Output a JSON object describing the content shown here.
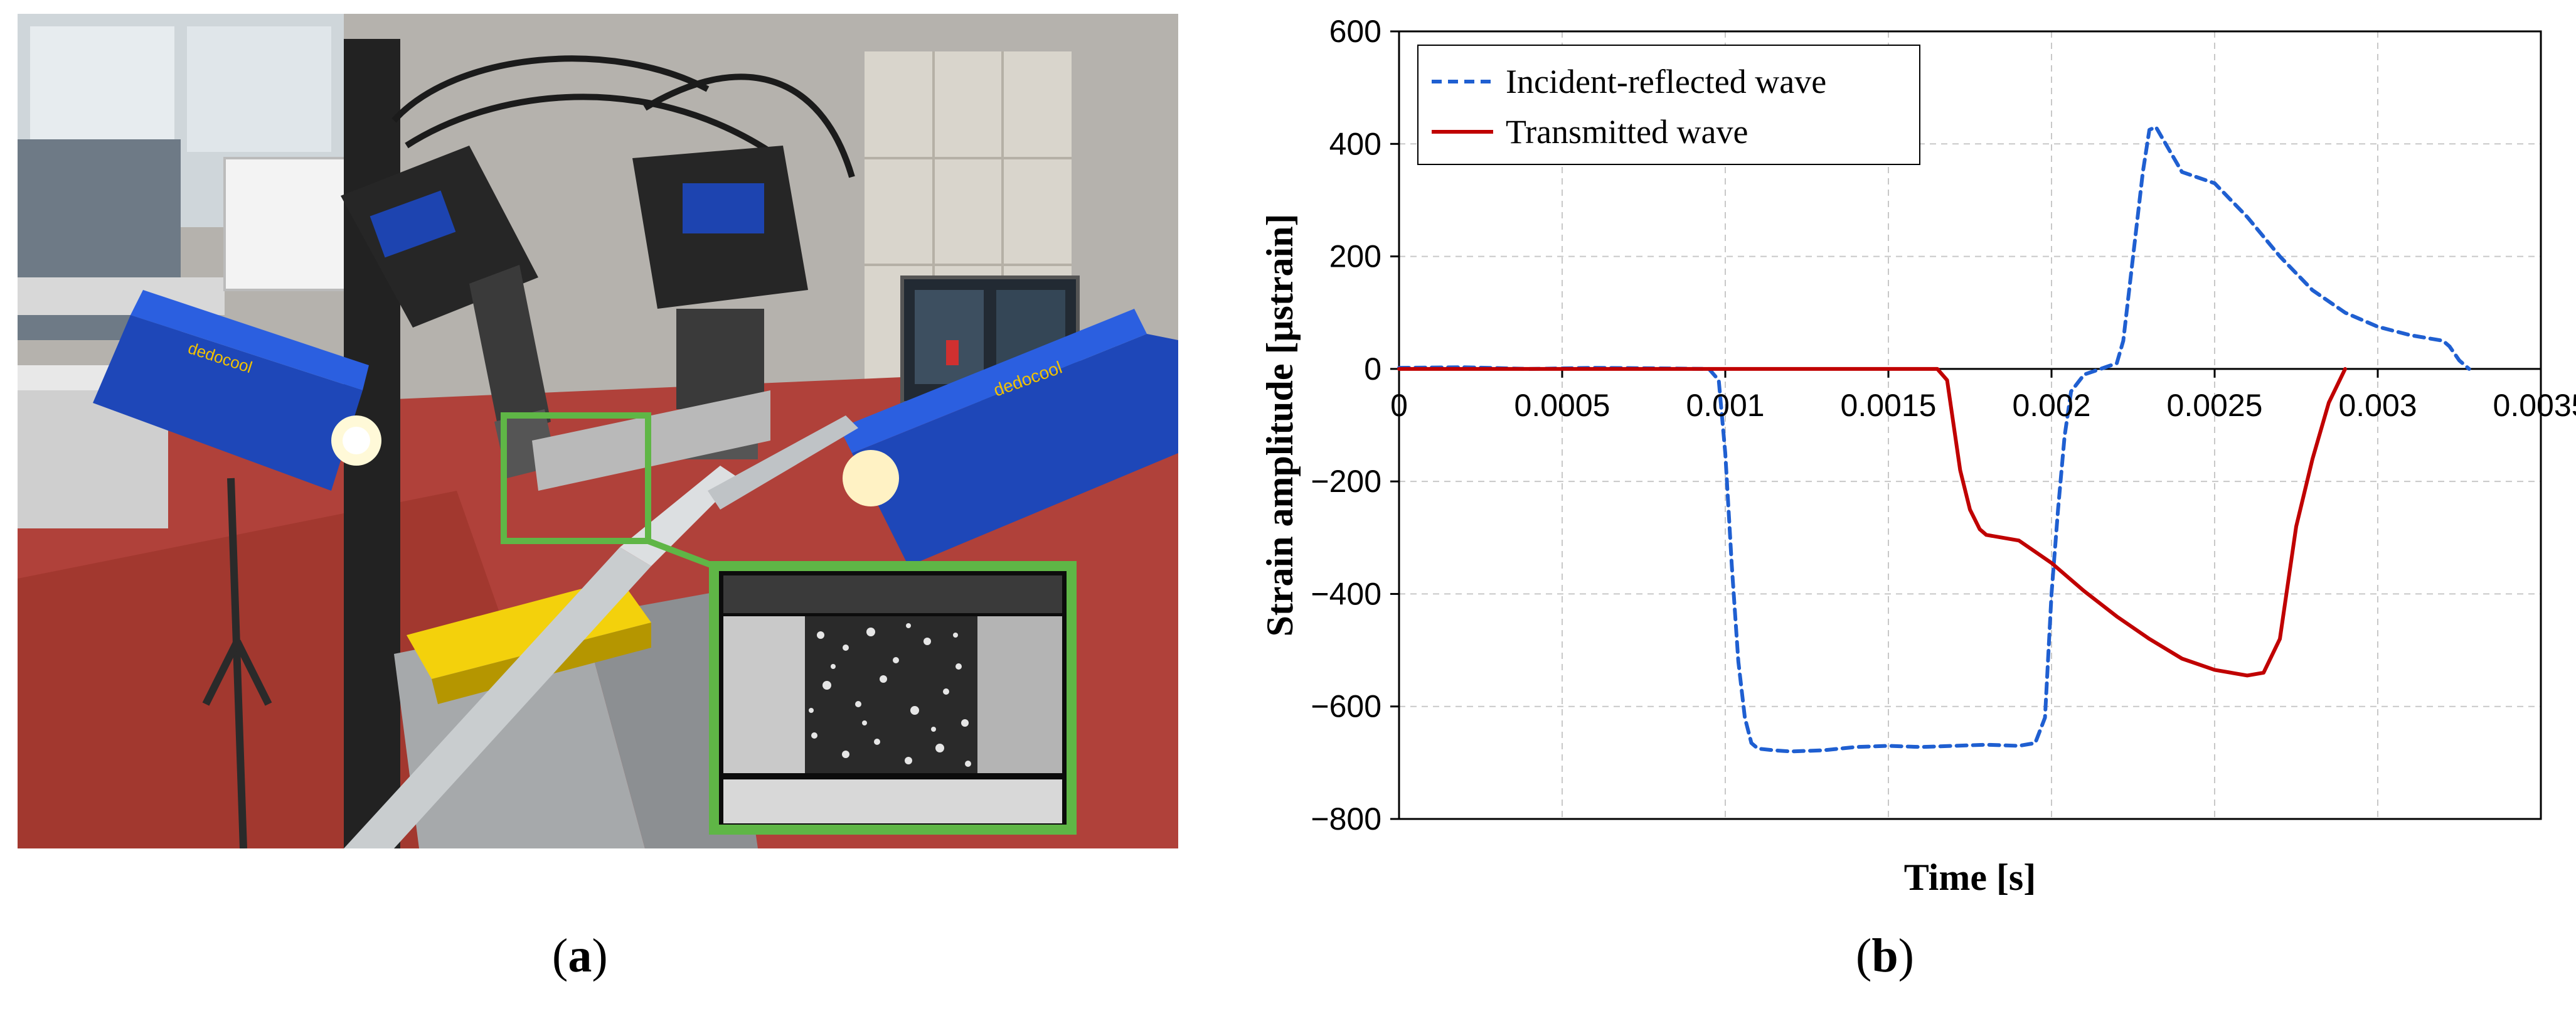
{
  "panels": {
    "a": {
      "caption": "a",
      "photo_labels": {
        "lamp_brand": "dedocool"
      }
    },
    "b": {
      "caption": "b"
    }
  },
  "colors": {
    "incident": "#1f5fd1",
    "transmitted": "#c00000",
    "grid": "#c8c8c8",
    "inset_frame": "#5fb646"
  },
  "chart_data": {
    "type": "line",
    "xlabel": "Time [s]",
    "ylabel": "Strain amplitude [μstrain]",
    "xlim": [
      0,
      0.0035
    ],
    "ylim": [
      -800,
      600
    ],
    "xticks": [
      0,
      0.0005,
      0.001,
      0.0015,
      0.002,
      0.0025,
      0.003,
      0.0035
    ],
    "xtick_labels": [
      "0",
      "0.0005",
      "0.001",
      "0.0015",
      "0.002",
      "0.0025",
      "0.003",
      "0.0035"
    ],
    "yticks": [
      600,
      400,
      200,
      0,
      -200,
      -400,
      -600,
      -800
    ],
    "ytick_labels": [
      "600",
      "400",
      "200",
      "0",
      "−200",
      "−400",
      "−600",
      "−800"
    ],
    "grid": true,
    "legend_placement": "top-left",
    "series": [
      {
        "name": "Incident-reflected wave",
        "style": "dashed",
        "color": "#1f5fd1",
        "x": [
          0,
          0.0002,
          0.0004,
          0.0006,
          0.0008,
          0.00095,
          0.00098,
          0.001,
          0.00102,
          0.00104,
          0.00106,
          0.00108,
          0.0011,
          0.00115,
          0.0012,
          0.0013,
          0.0014,
          0.0015,
          0.0016,
          0.0017,
          0.0018,
          0.0019,
          0.00195,
          0.00198,
          0.002,
          0.00202,
          0.00204,
          0.00206,
          0.0021,
          0.00215,
          0.0022,
          0.00222,
          0.00225,
          0.00228,
          0.0023,
          0.00232,
          0.00235,
          0.0024,
          0.0025,
          0.0026,
          0.0027,
          0.0028,
          0.0029,
          0.003,
          0.0031,
          0.0032,
          0.00322,
          0.00325,
          0.00328
        ],
        "y": [
          2,
          3,
          0,
          2,
          1,
          0,
          -20,
          -150,
          -350,
          -520,
          -620,
          -665,
          -675,
          -678,
          -680,
          -678,
          -672,
          -670,
          -672,
          -670,
          -668,
          -670,
          -665,
          -620,
          -400,
          -250,
          -120,
          -40,
          -10,
          0,
          10,
          50,
          200,
          350,
          425,
          430,
          400,
          350,
          330,
          270,
          200,
          140,
          100,
          75,
          60,
          50,
          40,
          15,
          0
        ]
      },
      {
        "name": "Transmitted wave",
        "style": "solid",
        "color": "#c00000",
        "x": [
          0,
          0.0005,
          0.001,
          0.0015,
          0.00165,
          0.00168,
          0.0017,
          0.00172,
          0.00175,
          0.00178,
          0.0018,
          0.00185,
          0.0019,
          0.00195,
          0.002,
          0.0021,
          0.0022,
          0.0023,
          0.0024,
          0.0025,
          0.0026,
          0.00265,
          0.0027,
          0.00272,
          0.00275,
          0.0028,
          0.00285,
          0.0029
        ],
        "y": [
          0,
          0,
          0,
          0,
          0,
          -20,
          -100,
          -180,
          -250,
          -285,
          -295,
          -300,
          -305,
          -325,
          -345,
          -395,
          -440,
          -480,
          -515,
          -535,
          -545,
          -540,
          -480,
          -400,
          -280,
          -160,
          -60,
          0
        ]
      }
    ]
  }
}
